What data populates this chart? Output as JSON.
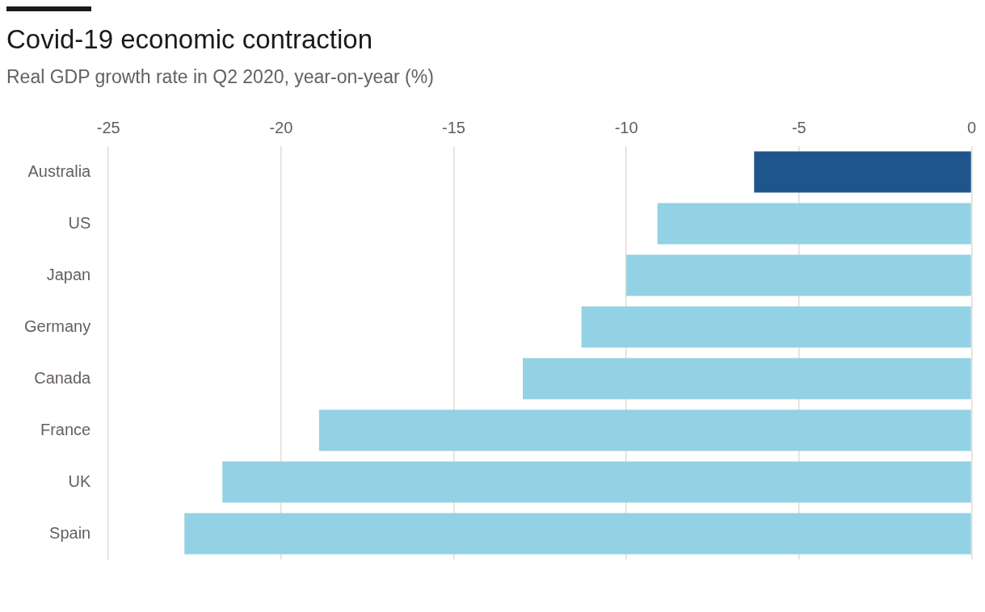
{
  "chart_data": {
    "type": "bar",
    "orientation": "horizontal",
    "title": "Covid-19 economic contraction",
    "subtitle": "Real GDP growth rate in Q2 2020, year-on-year (%)",
    "categories": [
      "Australia",
      "US",
      "Japan",
      "Germany",
      "Canada",
      "France",
      "UK",
      "Spain"
    ],
    "values": [
      -6.3,
      -9.1,
      -10.0,
      -11.3,
      -13.0,
      -18.9,
      -21.7,
      -22.8
    ],
    "colors": [
      "#1e558c",
      "#93d1e5",
      "#93d1e5",
      "#93d1e5",
      "#93d1e5",
      "#93d1e5",
      "#93d1e5",
      "#93d1e5"
    ],
    "xlim": [
      -25,
      0
    ],
    "xticks": [
      -25,
      -20,
      -15,
      -10,
      -5,
      0
    ],
    "grid": "x",
    "legend": false
  }
}
